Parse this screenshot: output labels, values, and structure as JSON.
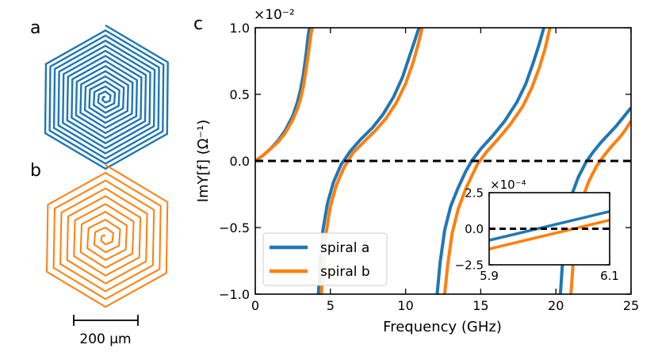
{
  "panels": {
    "a_label": "a",
    "b_label": "b",
    "c_label": "c"
  },
  "scale_bar": {
    "label": "200 µm"
  },
  "colors": {
    "spiral_a": "#1f77b4",
    "spiral_b": "#ff7f0e",
    "zero_line": "#000000"
  },
  "chart_data": [
    {
      "type": "line",
      "title": "",
      "xlabel": "Frequency (GHz)",
      "ylabel": "ImY[f] (Ω⁻¹)",
      "y_multiplier": "×10⁻²",
      "xlim": [
        0,
        25
      ],
      "ylim": [
        -1.0,
        1.0
      ],
      "x_ticks": [
        0,
        5,
        10,
        15,
        20,
        25
      ],
      "x_tick_labels": [
        "0",
        "5",
        "10",
        "15",
        "20",
        "25"
      ],
      "y_ticks": [
        -1.0,
        -0.5,
        0.0,
        0.5,
        1.0
      ],
      "y_tick_labels": [
        "−1.0",
        "−0.5",
        "0.0",
        "0.5",
        "1.0"
      ],
      "grid": false,
      "legend_position": "bottom-left",
      "reference_line": {
        "y": 0.0,
        "style": "dashed"
      },
      "series": [
        {
          "name": "spiral a",
          "x": [
            0.0,
            0.5,
            1.0,
            1.5,
            2.0,
            2.5,
            2.8,
            3.0,
            3.2,
            3.4,
            3.5,
            3.6,
            null,
            4.2,
            4.3,
            4.5,
            4.8,
            5.2,
            5.7,
            6.3,
            7.0,
            7.8,
            8.5,
            9.2,
            9.8,
            10.3,
            10.6,
            10.8,
            10.9,
            null,
            12.1,
            12.3,
            12.6,
            13.0,
            13.5,
            14.0,
            14.4,
            15.0,
            15.8,
            16.6,
            17.4,
            18.0,
            18.5,
            18.9,
            19.1,
            19.2,
            null,
            20.3,
            20.45,
            20.7,
            21.0,
            21.5,
            22.0,
            22.5,
            23.0,
            23.5,
            24.0,
            24.5,
            25.0
          ],
          "y": [
            0.0,
            0.04,
            0.09,
            0.15,
            0.23,
            0.34,
            0.44,
            0.53,
            0.65,
            0.82,
            0.93,
            1.0,
            null,
            -1.0,
            -0.8,
            -0.52,
            -0.32,
            -0.16,
            -0.03,
            0.07,
            0.16,
            0.25,
            0.35,
            0.48,
            0.63,
            0.8,
            0.9,
            0.97,
            1.0,
            null,
            -1.0,
            -0.76,
            -0.52,
            -0.34,
            -0.2,
            -0.08,
            0.0,
            0.09,
            0.19,
            0.3,
            0.44,
            0.58,
            0.74,
            0.88,
            0.96,
            1.0,
            null,
            -1.0,
            -0.75,
            -0.45,
            -0.27,
            -0.12,
            -0.01,
            0.07,
            0.14,
            0.2,
            0.26,
            0.33,
            0.4
          ]
        },
        {
          "name": "spiral b",
          "x": [
            0.0,
            0.5,
            1.0,
            1.5,
            2.0,
            2.5,
            2.8,
            3.0,
            3.2,
            3.4,
            3.6,
            3.7,
            3.8,
            null,
            4.4,
            4.5,
            4.7,
            5.0,
            5.4,
            5.9,
            6.5,
            7.2,
            8.0,
            8.7,
            9.4,
            10.0,
            10.5,
            10.8,
            11.0,
            11.1,
            null,
            12.6,
            12.8,
            13.1,
            13.5,
            14.0,
            14.5,
            14.8,
            15.4,
            16.2,
            17.0,
            17.8,
            18.4,
            18.9,
            19.3,
            19.5,
            19.6,
            null,
            21.0,
            21.15,
            21.4,
            21.7,
            22.2,
            22.7,
            23.2,
            23.7,
            24.2,
            24.6,
            25.0
          ],
          "y": [
            0.0,
            0.04,
            0.09,
            0.14,
            0.21,
            0.31,
            0.39,
            0.46,
            0.56,
            0.7,
            0.86,
            0.95,
            1.0,
            null,
            -1.0,
            -0.82,
            -0.55,
            -0.34,
            -0.18,
            -0.05,
            0.06,
            0.14,
            0.23,
            0.32,
            0.44,
            0.58,
            0.74,
            0.86,
            0.95,
            1.0,
            null,
            -1.0,
            -0.78,
            -0.54,
            -0.36,
            -0.21,
            -0.09,
            -0.02,
            0.07,
            0.17,
            0.28,
            0.41,
            0.55,
            0.7,
            0.85,
            0.95,
            1.0,
            null,
            -1.0,
            -0.76,
            -0.48,
            -0.3,
            -0.15,
            -0.04,
            0.04,
            0.11,
            0.17,
            0.23,
            0.3
          ]
        }
      ]
    },
    {
      "type": "line",
      "title": "",
      "inset": true,
      "y_multiplier": "×10⁻⁴",
      "xlim": [
        5.9,
        6.1
      ],
      "ylim": [
        -2.5,
        2.5
      ],
      "x_ticks": [
        5.9,
        6.1
      ],
      "x_tick_labels": [
        "5.9",
        "6.1"
      ],
      "y_ticks": [
        -2.5,
        0.0,
        2.5
      ],
      "y_tick_labels": [
        "−2.5",
        "0.0",
        "2.5"
      ],
      "reference_line": {
        "y": 0.0,
        "style": "dashed"
      },
      "series": [
        {
          "name": "spiral a",
          "x": [
            5.9,
            6.1
          ],
          "y": [
            -0.8,
            1.2
          ]
        },
        {
          "name": "spiral b",
          "x": [
            5.9,
            6.1
          ],
          "y": [
            -1.4,
            0.6
          ]
        }
      ]
    }
  ]
}
